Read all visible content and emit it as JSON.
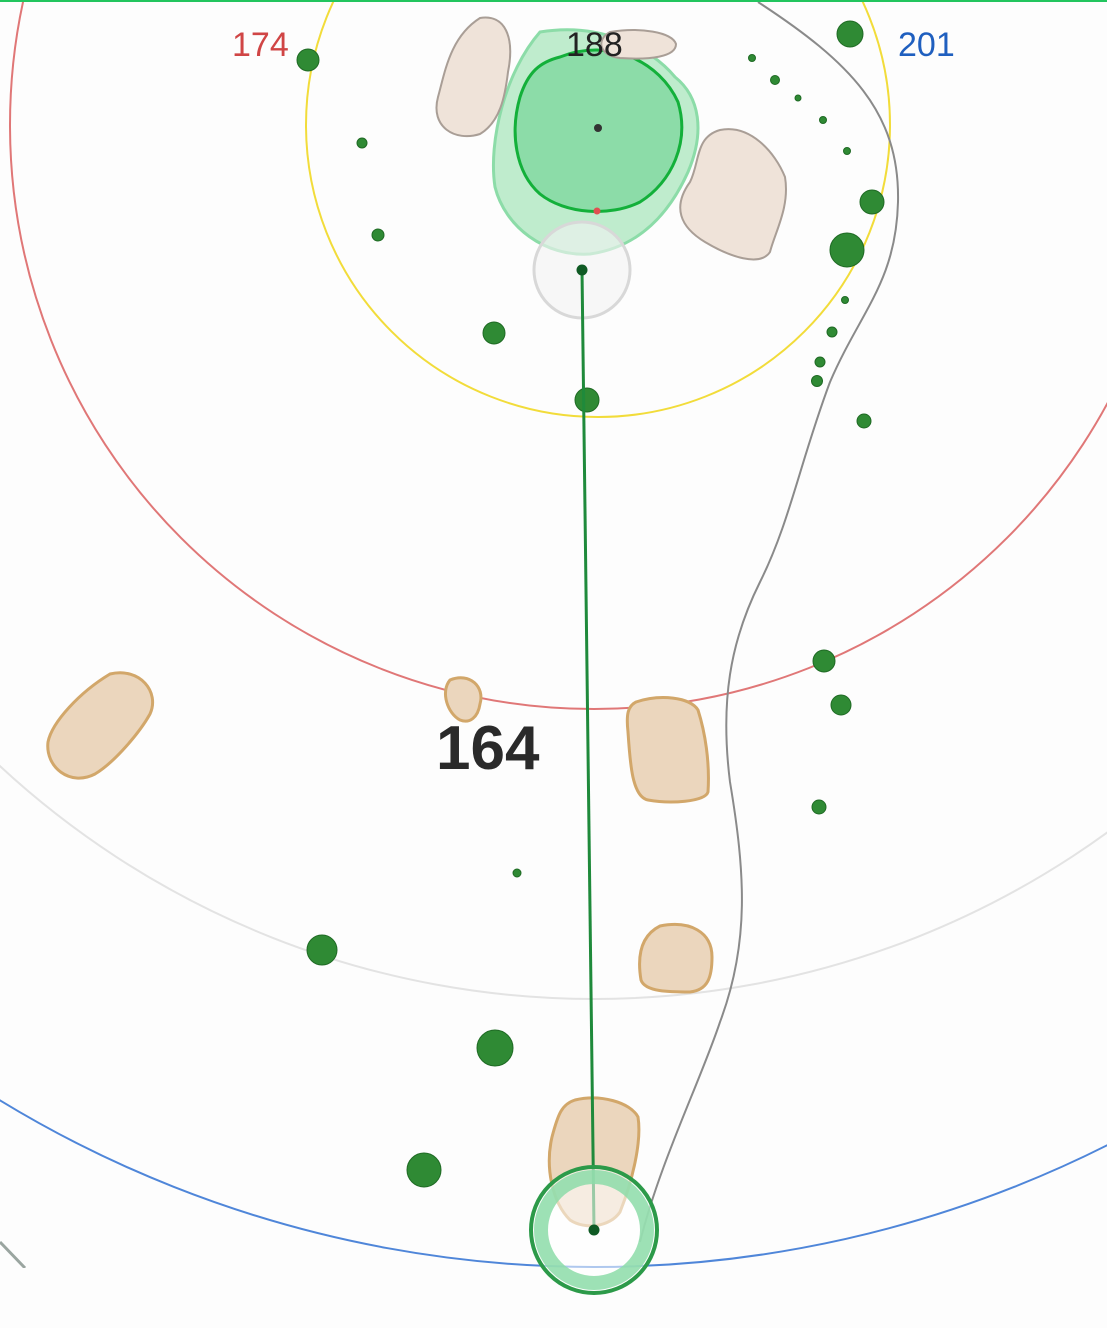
{
  "ring_labels": {
    "front": {
      "text": "174",
      "color": "#d04545"
    },
    "center": {
      "text": "188",
      "color": "#222222"
    },
    "back": {
      "text": "201",
      "color": "#1f5fbf"
    }
  },
  "shot_distance": {
    "text": "164",
    "color": "#2a2a2a"
  },
  "colors": {
    "green_fill": "#8cdca8",
    "green_border": "#13b03a",
    "fringe_fill": "#bfeccd",
    "sand_fill": "#ebd6bd",
    "sand_border": "#d2a76a",
    "waste_fill": "#efe3d9",
    "waste_border": "#a99e96",
    "tree": "#2f8a34",
    "shot_line": "#1f8a3b",
    "ring_front": "#e07777",
    "ring_middle": "#f2dc3a",
    "ring_back": "#4f86d9",
    "accent_top_border": "#22c55e"
  }
}
